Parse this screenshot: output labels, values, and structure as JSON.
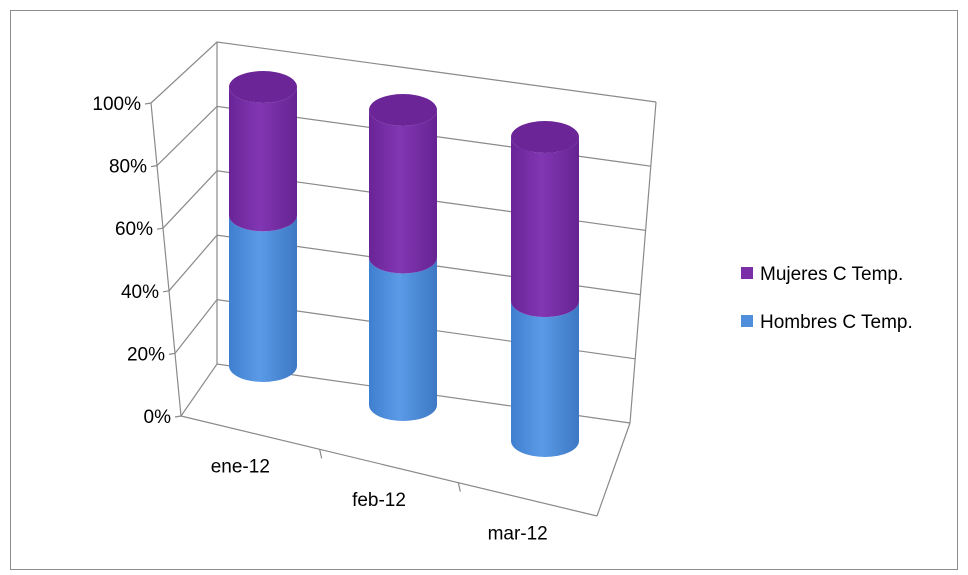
{
  "chart_data": {
    "type": "bar",
    "stacked": "100%",
    "style": "3d-cylinder",
    "categories": [
      "ene-12",
      "feb-12",
      "mar-12"
    ],
    "series": [
      {
        "name": "Hombres C Temp.",
        "values": [
          54,
          50,
          46
        ],
        "color": "#4f8fdc"
      },
      {
        "name": "Mujeres C Temp.",
        "values": [
          46,
          50,
          54
        ],
        "color": "#7a2fa8"
      }
    ],
    "y_ticks": [
      "0%",
      "20%",
      "40%",
      "60%",
      "80%",
      "100%"
    ],
    "ylim": [
      0,
      100
    ],
    "legend_position": "right",
    "grid": true
  }
}
